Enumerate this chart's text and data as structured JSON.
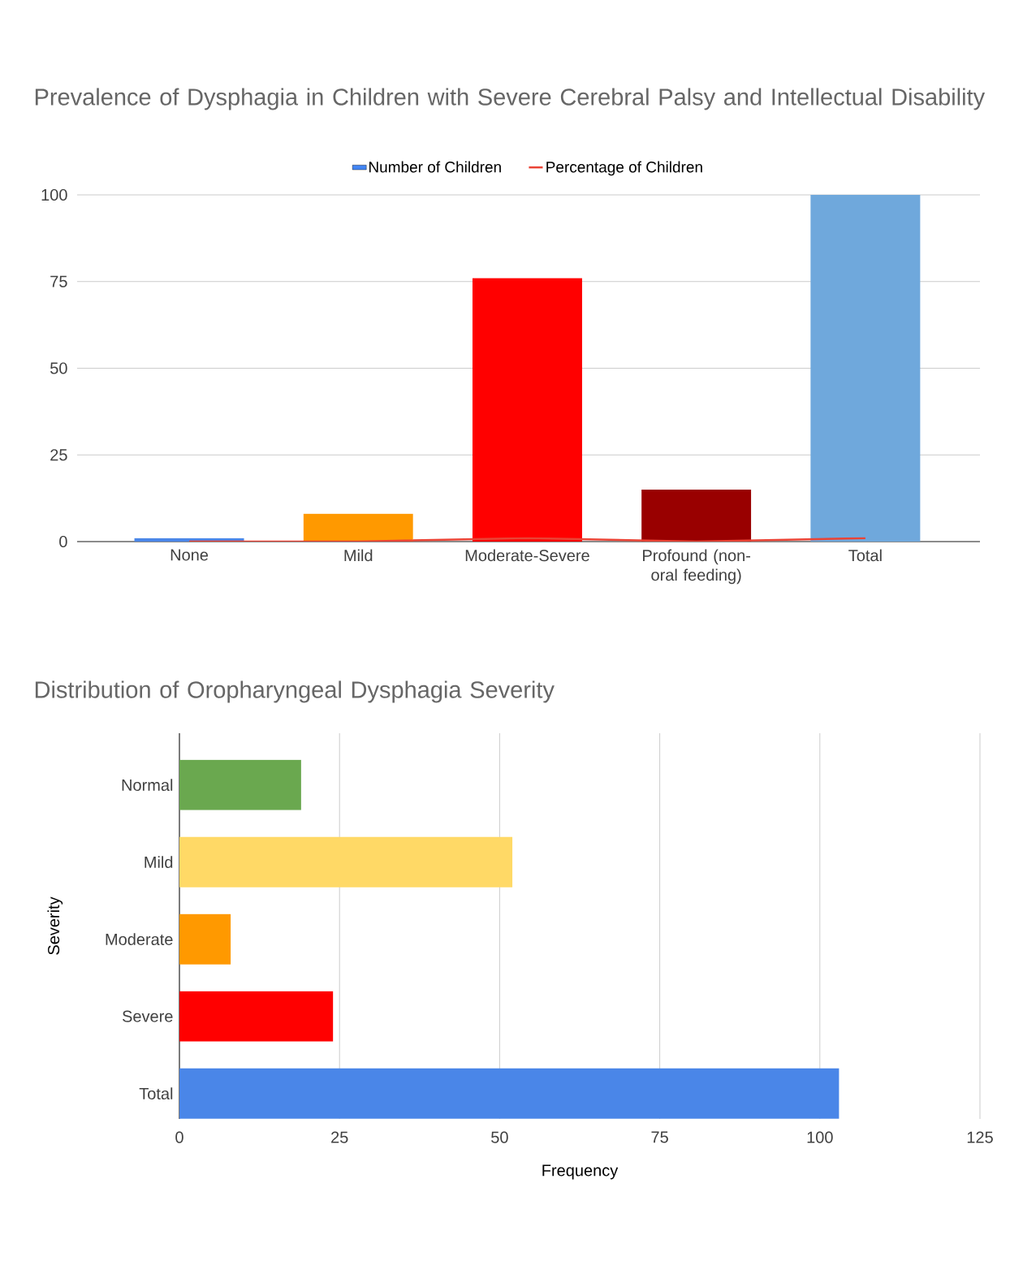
{
  "chart_data": [
    {
      "type": "bar",
      "title": "Prevalence of Dysphagia in Children with Severe Cerebral Palsy and Intellectual Disability",
      "categories": [
        "None",
        "Mild",
        "Moderate-Severe",
        "Profound (non-oral feeding)",
        "Total"
      ],
      "series": [
        {
          "name": "Number of Children",
          "color": "#4285f4",
          "colors": [
            "#4a86e8",
            "#ff9900",
            "#ff0000",
            "#990000",
            "#6fa8dc"
          ],
          "values": [
            1,
            8,
            76,
            15,
            100
          ]
        },
        {
          "name": "Percentage of Children",
          "type": "line",
          "color": "#ea4335",
          "values": [
            0,
            0,
            1,
            0,
            1
          ]
        }
      ],
      "ylim": [
        0,
        100
      ],
      "yticks": [
        0,
        25,
        50,
        75,
        100
      ],
      "grid": "y",
      "legend": "top"
    },
    {
      "type": "bar",
      "orientation": "horizontal",
      "title": "Distribution of Oropharyngeal Dysphagia Severity",
      "xlabel": "Frequency",
      "ylabel": "Severity",
      "categories": [
        "Normal",
        "Mild",
        "Moderate",
        "Severe",
        "Total"
      ],
      "values": [
        19,
        52,
        8,
        24,
        103
      ],
      "colors": [
        "#6aa84f",
        "#ffd966",
        "#ff9900",
        "#ff0000",
        "#4a86e8"
      ],
      "xlim": [
        0,
        125
      ],
      "xticks": [
        0,
        25,
        50,
        75,
        100,
        125
      ],
      "grid": "x"
    }
  ]
}
